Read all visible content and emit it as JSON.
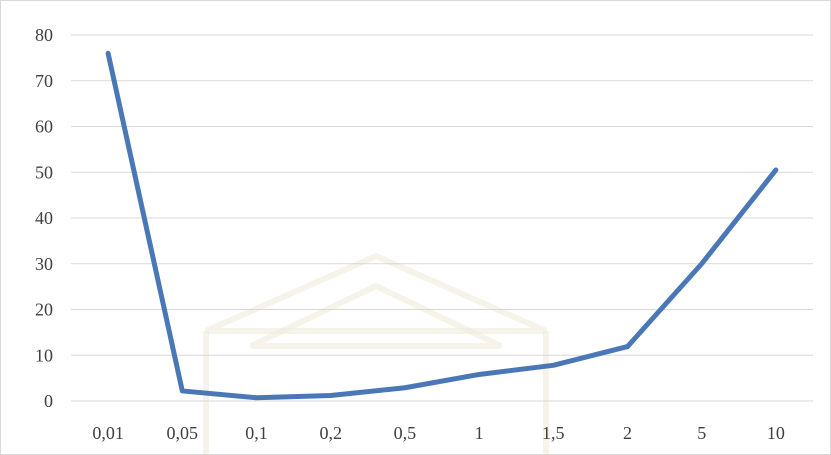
{
  "chart_data": {
    "type": "line",
    "title": "",
    "xlabel": "",
    "ylabel": "",
    "categories": [
      "0,01",
      "0,05",
      "0,1",
      "0,2",
      "0,5",
      "1",
      "1,5",
      "2",
      "5",
      "10"
    ],
    "series": [
      {
        "name": "",
        "color": "#4a78b7",
        "values": [
          76,
          2.2,
          0.7,
          1.2,
          2.9,
          5.8,
          7.8,
          11.9,
          30,
          50.5
        ]
      }
    ],
    "ylim": [
      0,
      80
    ],
    "yticks": [
      0,
      10,
      20,
      30,
      40,
      50,
      60,
      70,
      80
    ],
    "grid": true,
    "legend": "none"
  }
}
